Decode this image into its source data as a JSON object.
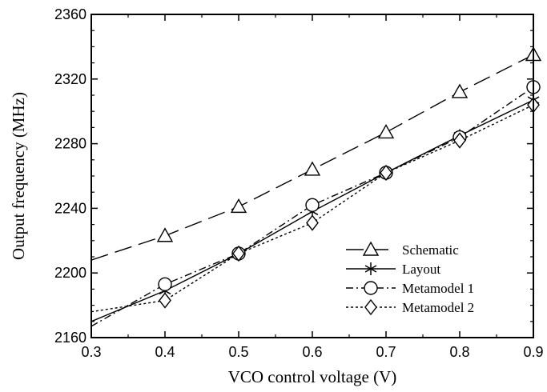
{
  "chart_data": {
    "type": "line",
    "title": "",
    "xlabel": "VCO control voltage (V)",
    "ylabel": "Output frequency (MHz)",
    "xlim": [
      0.3,
      0.9
    ],
    "ylim": [
      2160,
      2360
    ],
    "xticks": [
      "0.3",
      "0.4",
      "0.5",
      "0.6",
      "0.7",
      "0.8",
      "0.9"
    ],
    "yticks": [
      "2160",
      "2200",
      "2240",
      "2280",
      "2320",
      "2360"
    ],
    "grid": false,
    "legend_position": "bottom-right",
    "series": [
      {
        "name": "Schematic",
        "marker": "triangle",
        "dash": "long-dash",
        "x": [
          0.3,
          0.4,
          0.5,
          0.6,
          0.7,
          0.8,
          0.9
        ],
        "y": [
          2208,
          2223,
          2241,
          2264,
          2287,
          2312,
          2335
        ]
      },
      {
        "name": "Layout",
        "marker": "star",
        "dash": "solid",
        "x": [
          0.3,
          0.4,
          0.5,
          0.6,
          0.7,
          0.8,
          0.9
        ],
        "y": [
          2170,
          2189,
          2212,
          2238,
          2262,
          2285,
          2307
        ]
      },
      {
        "name": "Metamodel 1",
        "marker": "circle",
        "dash": "dash-dot",
        "x": [
          0.3,
          0.4,
          0.5,
          0.6,
          0.7,
          0.8,
          0.9
        ],
        "y": [
          2167,
          2193,
          2212,
          2242,
          2262,
          2284,
          2315
        ]
      },
      {
        "name": "Metamodel 2",
        "marker": "diamond",
        "dash": "dotted",
        "x": [
          0.3,
          0.4,
          0.5,
          0.6,
          0.7,
          0.8,
          0.9
        ],
        "y": [
          2176,
          2183,
          2212,
          2231,
          2262,
          2282,
          2304
        ]
      }
    ]
  }
}
